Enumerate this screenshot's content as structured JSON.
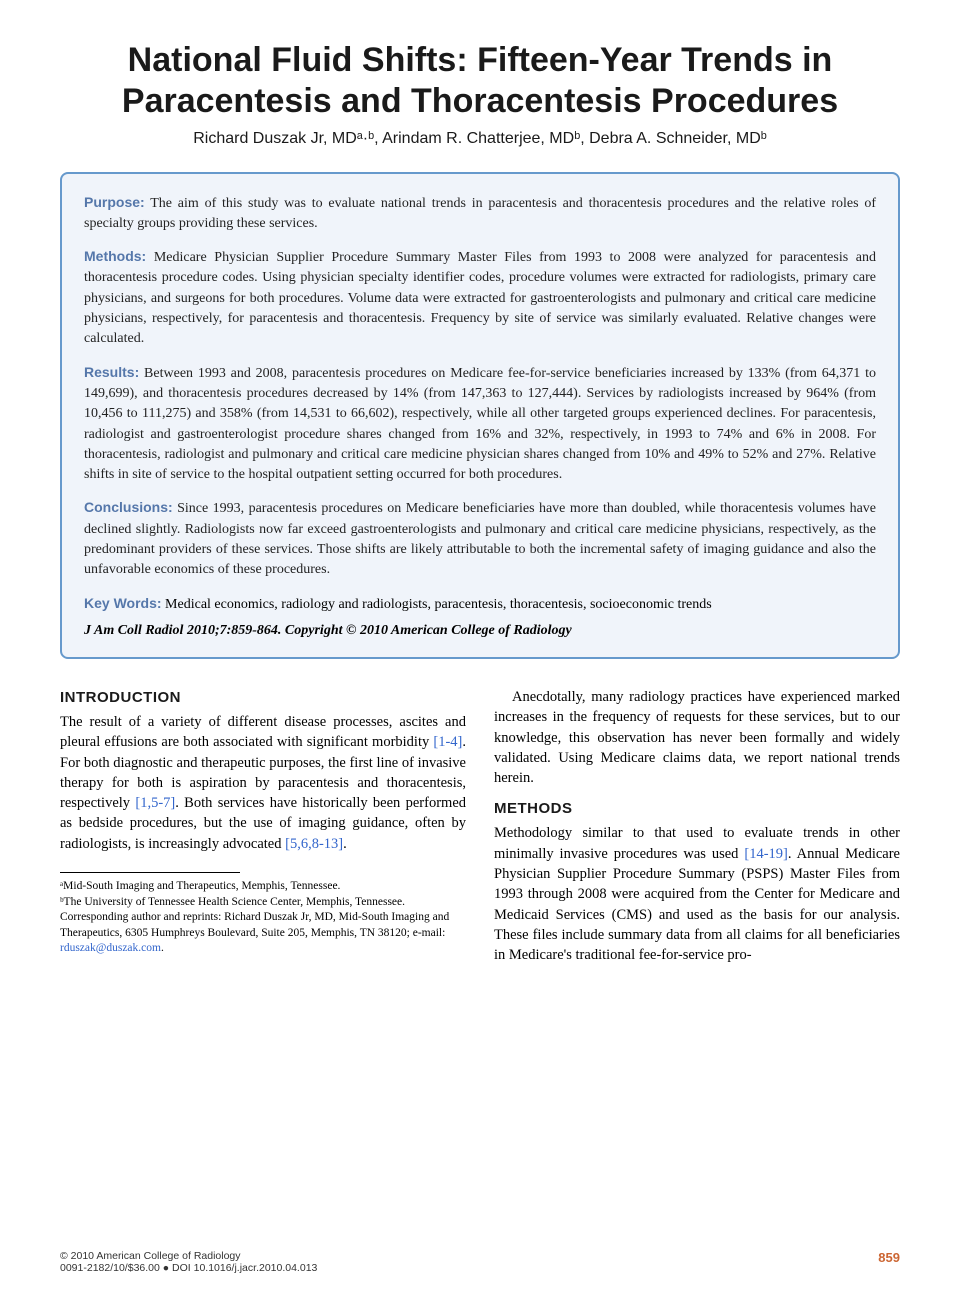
{
  "title": "National Fluid Shifts: Fifteen-Year Trends in Paracentesis and Thoracentesis Procedures",
  "authors": "Richard Duszak Jr, MDᵃ·ᵇ, Arindam R. Chatterjee, MDᵇ, Debra A. Schneider, MDᵇ",
  "abstract": {
    "purpose_label": "Purpose:",
    "purpose_text": " The aim of this study was to evaluate national trends in paracentesis and thoracentesis procedures and the relative roles of specialty groups providing these services.",
    "methods_label": "Methods:",
    "methods_text": " Medicare Physician Supplier Procedure Summary Master Files from 1993 to 2008 were analyzed for paracentesis and thoracentesis procedure codes. Using physician specialty identifier codes, procedure volumes were extracted for radiologists, primary care physicians, and surgeons for both procedures. Volume data were extracted for gastroenterologists and pulmonary and critical care medicine physicians, respectively, for paracentesis and thoracentesis. Frequency by site of service was similarly evaluated. Relative changes were calculated.",
    "results_label": "Results:",
    "results_text": " Between 1993 and 2008, paracentesis procedures on Medicare fee-for-service beneficiaries increased by 133% (from 64,371 to 149,699), and thoracentesis procedures decreased by 14% (from 147,363 to 127,444). Services by radiologists increased by 964% (from 10,456 to 111,275) and 358% (from 14,531 to 66,602), respectively, while all other targeted groups experienced declines. For paracentesis, radiologist and gastroenterologist procedure shares changed from 16% and 32%, respectively, in 1993 to 74% and 6% in 2008. For thoracentesis, radiologist and pulmonary and critical care medicine physician shares changed from 10% and 49% to 52% and 27%. Relative shifts in site of service to the hospital outpatient setting occurred for both procedures.",
    "conclusions_label": "Conclusions:",
    "conclusions_text": " Since 1993, paracentesis procedures on Medicare beneficiaries have more than doubled, while thoracentesis volumes have declined slightly. Radiologists now far exceed gastroenterologists and pulmonary and critical care medicine physicians, respectively, as the predominant providers of these services. Those shifts are likely attributable to both the incremental safety of imaging guidance and also the unfavorable economics of these procedures.",
    "keywords_label": "Key Words:",
    "keywords_text": " Medical economics, radiology and radiologists, paracentesis, thoracentesis, socioeconomic trends",
    "citation": "J Am Coll Radiol 2010;7:859-864. Copyright © 2010 American College of Radiology"
  },
  "body": {
    "intro_head": "INTRODUCTION",
    "intro_p1a": "The result of a variety of different disease processes, ascites and pleural effusions are both associated with significant morbidity ",
    "intro_ref1": "[1-4]",
    "intro_p1b": ". For both diagnostic and therapeutic purposes, the first line of invasive therapy for both is aspiration by paracentesis and thoracentesis, respectively ",
    "intro_ref2": "[1,5-7]",
    "intro_p1c": ". Both services have historically been performed as bedside procedures, but the use of imaging guidance, often by radiologists, is increasingly advocated ",
    "intro_ref3": "[5,6,8-13]",
    "intro_p1d": ".",
    "intro_p2": "Anecdotally, many radiology practices have experienced marked increases in the frequency of requests for these services, but to our knowledge, this observation has never been formally and widely validated. Using Medicare claims data, we report national trends herein.",
    "methods_head": "METHODS",
    "methods_p1a": "Methodology similar to that used to evaluate trends in other minimally invasive procedures was used ",
    "methods_ref1": "[14-19]",
    "methods_p1b": ". Annual Medicare Physician Supplier Procedure Summary (PSPS) Master Files from 1993 through 2008 were acquired from the Center for Medicare and Medicaid Services (CMS) and used as the basis for our analysis. These files include summary data from all claims for all beneficiaries in Medicare's traditional fee-for-service pro-"
  },
  "footnotes": {
    "affil_a": "ᵃMid-South Imaging and Therapeutics, Memphis, Tennessee.",
    "affil_b": "ᵇThe University of Tennessee Health Science Center, Memphis, Tennessee.",
    "corr_a": "Corresponding author and reprints: Richard Duszak Jr, MD, Mid-South Imaging and Therapeutics, 6305 Humphreys Boulevard, Suite 205, Memphis, TN 38120; e-mail: ",
    "corr_email": "rduszak@duszak.com",
    "corr_b": "."
  },
  "footer": {
    "copyright": "© 2010 American College of Radiology",
    "issn_doi": "0091-2182/10/$36.00 ● DOI 10.1016/j.jacr.2010.04.013",
    "page": "859"
  },
  "colors": {
    "abstract_border": "#6699cc",
    "abstract_bg": "#f0f4fa",
    "label_color": "#5577aa",
    "link_color": "#3366cc",
    "page_num_color": "#cc6633"
  }
}
